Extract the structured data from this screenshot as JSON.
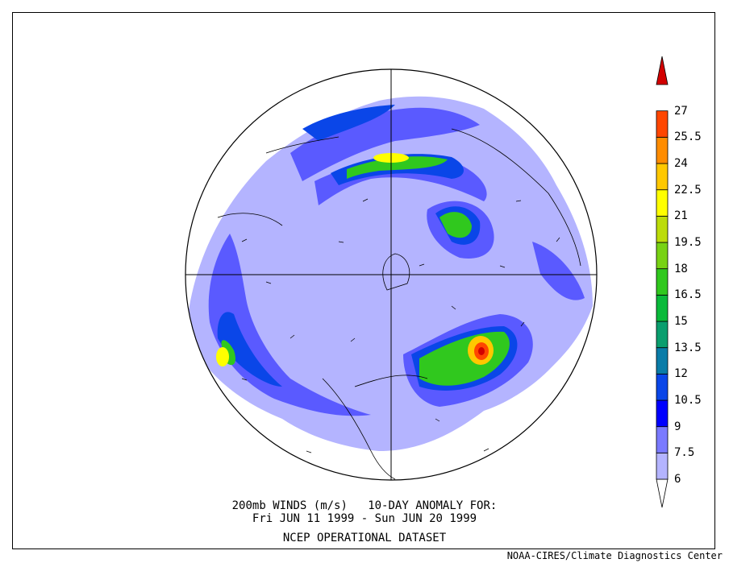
{
  "title": {
    "line1": "200mb WINDS (m/s)   10-DAY ANOMALY FOR:",
    "line2": "Fri JUN 11 1999 - Sun JUN 20 1999",
    "dataset": "NCEP OPERATIONAL DATASET"
  },
  "credit": "NOAA-CIRES/Climate Diagnostics Center",
  "map": {
    "projection": "north-polar-stereographic",
    "field": "200mb wind speed anomaly",
    "units": "m/s"
  },
  "colorbar": {
    "levels": [
      "6",
      "7.5",
      "9",
      "10.5",
      "12",
      "13.5",
      "15",
      "16.5",
      "18",
      "19.5",
      "21",
      "22.5",
      "24",
      "25.5",
      "27"
    ],
    "colors": [
      "#ffffff",
      "#b4b4ff",
      "#7a7aff",
      "#0000ff",
      "#0a46e8",
      "#0a7ca8",
      "#0a9e6e",
      "#0aba3a",
      "#30c81e",
      "#78d214",
      "#bcdc0a",
      "#ffff00",
      "#ffc800",
      "#ff8c00",
      "#ff4600",
      "#d20000"
    ]
  }
}
